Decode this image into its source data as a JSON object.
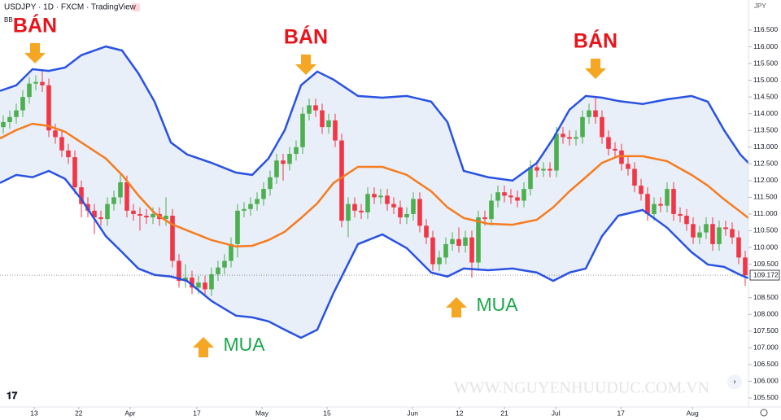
{
  "chart_data": {
    "type": "candlestick",
    "title": "USDJPY · 1D · FXCM · TradingView",
    "indicator": "BB",
    "y_unit": "JPY",
    "watermark": "WWW.NGUYENHUUDUC.COM.VN",
    "annotations": [
      "BÁN",
      "BÁN",
      "BÁN",
      "MUA",
      "MUA"
    ],
    "up_color": "#4caf50",
    "down_color": "#f23645",
    "xlim": [
      -0.5,
      114.5
    ],
    "ylim": [
      105.23,
      117.4
    ],
    "xticks": [
      {
        "value": 4.75,
        "label": "13"
      },
      {
        "value": 11.6,
        "label": "22"
      },
      {
        "value": 19.5,
        "label": "Apr"
      },
      {
        "value": 29.75,
        "label": "17"
      },
      {
        "value": 39.75,
        "label": "May"
      },
      {
        "value": 49.75,
        "label": "15"
      },
      {
        "value": 62.9,
        "label": "Jun"
      },
      {
        "value": 70.1,
        "label": "12"
      },
      {
        "value": 77,
        "label": "21"
      },
      {
        "value": 84.9,
        "label": "Jul"
      },
      {
        "value": 94.9,
        "label": "17"
      },
      {
        "value": 105.9,
        "label": "Aug"
      }
    ],
    "yticks": [
      {
        "value": 105.5,
        "label": "105.500"
      },
      {
        "value": 106,
        "label": "106.000"
      },
      {
        "value": 106.5,
        "label": "106.500"
      },
      {
        "value": 107,
        "label": "107.000"
      },
      {
        "value": 107.5,
        "label": "107.500"
      },
      {
        "value": 108,
        "label": "108.000"
      },
      {
        "value": 108.5,
        "label": "108.500"
      },
      {
        "value": 109.5,
        "label": "109.500"
      },
      {
        "value": 110,
        "label": "110.000"
      },
      {
        "value": 110.5,
        "label": "110.500"
      },
      {
        "value": 111,
        "label": "111.000"
      },
      {
        "value": 111.5,
        "label": "111.500"
      },
      {
        "value": 112,
        "label": "112.000"
      },
      {
        "value": 112.5,
        "label": "112.500"
      },
      {
        "value": 113,
        "label": "113.000"
      },
      {
        "value": 113.5,
        "label": "113.500"
      },
      {
        "value": 114,
        "label": "114.000"
      },
      {
        "value": 114.5,
        "label": "114.500"
      },
      {
        "value": 115,
        "label": "115.000"
      },
      {
        "value": 115.5,
        "label": "115.500"
      },
      {
        "value": 116,
        "label": "116.000"
      },
      {
        "value": 116.5,
        "label": "116.500"
      }
    ],
    "open": [
      113.6,
      113.75,
      113.9,
      114.1,
      114.5,
      114.9,
      114.95,
      114.85,
      113.5,
      113.3,
      112.9,
      112.7,
      111.8,
      111.3,
      111.1,
      110.9,
      110.85,
      111.3,
      111.5,
      111.95,
      111.1,
      111.0,
      110.95,
      110.9,
      111.0,
      110.85,
      110.95,
      109.6,
      109.0,
      109.1,
      108.8,
      108.95,
      108.75,
      109.2,
      109.4,
      109.6,
      110.1,
      111.1,
      111.15,
      111.3,
      111.45,
      111.75,
      112.1,
      112.6,
      112.5,
      112.8,
      113.0,
      114.0,
      114.25,
      114.1,
      113.6,
      113.8,
      113.2,
      110.8,
      111.3,
      111.1,
      111.05,
      111.6,
      111.5,
      111.55,
      111.3,
      111.2,
      110.9,
      111.0,
      111.45,
      110.65,
      110.3,
      109.5,
      109.7,
      110.1,
      110.25,
      110.05,
      110.3,
      109.55,
      110.9,
      110.85,
      111.4,
      111.65,
      111.55,
      111.5,
      111.4,
      111.75,
      112.4,
      112.3,
      112.35,
      112.3,
      113.4,
      113.3,
      113.25,
      113.3,
      113.9,
      114.1,
      113.9,
      113.3,
      112.95,
      112.9,
      112.5,
      112.35,
      111.85,
      111.6,
      111.0,
      111.3,
      111.25,
      111.75,
      111.0,
      110.95,
      110.7,
      110.3,
      110.45,
      110.7,
      110.1,
      110.6,
      110.55,
      110.3,
      109.7
    ],
    "high": [
      113.95,
      114.1,
      114.3,
      114.7,
      115.1,
      115.15,
      115.3,
      115.05,
      113.7,
      113.5,
      113.1,
      112.9,
      112.0,
      111.5,
      111.3,
      111.1,
      111.5,
      111.7,
      112.2,
      112.15,
      111.3,
      111.2,
      111.15,
      111.2,
      111.2,
      111.5,
      111.15,
      109.8,
      109.5,
      109.3,
      109.15,
      109.15,
      109.4,
      109.6,
      109.8,
      110.3,
      111.3,
      111.35,
      111.5,
      111.65,
      111.95,
      112.3,
      112.8,
      112.8,
      113.0,
      113.2,
      114.2,
      114.45,
      114.45,
      114.3,
      114.0,
      114.0,
      113.4,
      111.5,
      111.5,
      111.3,
      111.8,
      111.8,
      111.75,
      111.75,
      111.5,
      111.4,
      111.2,
      111.65,
      111.65,
      110.85,
      110.5,
      109.9,
      110.3,
      110.45,
      110.6,
      110.5,
      110.5,
      111.1,
      111.1,
      111.6,
      111.85,
      111.85,
      111.75,
      111.7,
      111.95,
      112.6,
      112.6,
      112.55,
      112.55,
      113.6,
      113.6,
      113.5,
      113.5,
      114.1,
      114.3,
      114.5,
      114.1,
      113.5,
      113.15,
      113.1,
      112.7,
      112.55,
      112.05,
      111.8,
      111.5,
      111.5,
      111.95,
      111.95,
      111.2,
      111.15,
      110.9,
      110.65,
      110.9,
      110.9,
      110.8,
      110.8,
      110.75,
      110.5,
      109.9
    ],
    "low": [
      113.4,
      113.55,
      113.7,
      113.9,
      114.3,
      114.7,
      114.65,
      113.3,
      113.1,
      112.7,
      112.5,
      111.6,
      110.9,
      110.9,
      110.4,
      110.65,
      110.65,
      111.1,
      111.3,
      110.9,
      110.8,
      110.5,
      110.7,
      110.7,
      110.65,
      110.65,
      109.4,
      108.8,
      108.8,
      108.6,
      108.6,
      108.55,
      108.55,
      109.0,
      109.2,
      109.4,
      109.7,
      110.9,
      110.95,
      111.1,
      111.25,
      111.55,
      111.9,
      112.0,
      112.3,
      112.6,
      112.8,
      113.8,
      113.9,
      113.4,
      113.4,
      113.0,
      110.6,
      110.3,
      110.9,
      110.85,
      110.85,
      111.3,
      111.3,
      111.1,
      111.0,
      110.7,
      110.7,
      110.8,
      110.45,
      110.1,
      109.3,
      109.3,
      109.5,
      109.9,
      109.85,
      109.85,
      109.1,
      109.35,
      110.65,
      110.65,
      111.2,
      111.35,
      111.3,
      111.2,
      111.2,
      111.55,
      112.1,
      112.1,
      112.1,
      112.1,
      113.1,
      113.05,
      113.05,
      113.1,
      113.7,
      113.7,
      113.1,
      112.75,
      112.7,
      112.3,
      112.15,
      111.65,
      111.4,
      110.8,
      110.8,
      111.05,
      111.05,
      110.8,
      110.75,
      110.5,
      110.1,
      110.1,
      110.25,
      109.9,
      109.9,
      110.35,
      110.1,
      109.5,
      108.85
    ],
    "close": [
      113.75,
      113.9,
      114.1,
      114.5,
      114.9,
      114.95,
      114.85,
      113.5,
      113.3,
      112.9,
      112.7,
      111.8,
      111.3,
      111.1,
      110.9,
      110.85,
      111.3,
      111.5,
      111.95,
      111.1,
      111.0,
      110.95,
      110.9,
      111.0,
      110.85,
      110.95,
      109.6,
      109.0,
      109.1,
      108.8,
      108.95,
      108.75,
      109.2,
      109.4,
      109.6,
      110.1,
      111.1,
      111.15,
      111.3,
      111.45,
      111.75,
      112.1,
      112.6,
      112.5,
      112.8,
      113.0,
      114.0,
      114.25,
      114.1,
      113.6,
      113.8,
      113.2,
      110.8,
      111.3,
      111.1,
      111.05,
      111.6,
      111.5,
      111.55,
      111.3,
      111.2,
      110.9,
      111.0,
      111.45,
      110.65,
      110.3,
      109.5,
      109.7,
      110.1,
      110.25,
      110.05,
      110.3,
      109.55,
      110.9,
      110.85,
      111.4,
      111.65,
      111.55,
      111.5,
      111.4,
      111.75,
      112.4,
      112.3,
      112.35,
      112.3,
      113.4,
      113.3,
      113.25,
      113.3,
      113.9,
      114.1,
      113.9,
      113.3,
      112.95,
      112.9,
      112.5,
      112.35,
      111.85,
      111.6,
      111.0,
      111.3,
      111.25,
      111.75,
      111.0,
      110.95,
      110.7,
      110.3,
      110.45,
      110.7,
      110.1,
      110.6,
      110.55,
      110.3,
      109.7,
      109.172
    ],
    "last_value_label": "109.172",
    "band_x": [
      -0.5,
      2,
      4.5,
      7,
      9.5,
      12,
      15.75,
      18.25,
      20.75,
      23.25,
      25.75,
      28.25,
      32,
      35.75,
      38.25,
      40.75,
      43.25,
      45.75,
      48.25,
      50.75,
      54.5,
      58.25,
      62,
      65.75,
      68.25,
      70.75,
      74.5,
      78.25,
      82,
      84.5,
      87,
      89.5,
      92,
      94.5,
      98.25,
      102,
      105.75,
      108.25,
      110.75,
      113.25,
      114.5
    ],
    "band_fill": "#e8eff9",
    "series": [
      {
        "color": "#2952e3",
        "values": [
          114.68,
          114.85,
          115.33,
          115.28,
          115.38,
          115.75,
          116.01,
          115.89,
          115.21,
          114.36,
          113.14,
          112.78,
          112.53,
          112.24,
          112.17,
          112.66,
          113.51,
          114.85,
          115.26,
          115.02,
          114.53,
          114.48,
          114.53,
          114.36,
          113.75,
          112.29,
          112.1,
          112.0,
          112.53,
          113.26,
          114.12,
          114.53,
          114.48,
          114.38,
          114.29,
          114.43,
          114.53,
          114.36,
          113.51,
          112.78,
          112.53
        ]
      },
      {
        "color": "#f57c1f",
        "values": [
          113.26,
          113.51,
          113.7,
          113.63,
          113.46,
          113.14,
          112.66,
          112.17,
          111.56,
          111.03,
          110.71,
          110.51,
          110.22,
          110.03,
          110.05,
          110.22,
          110.47,
          110.88,
          111.32,
          111.93,
          112.41,
          112.41,
          112.17,
          111.68,
          111.2,
          110.88,
          110.71,
          110.68,
          110.83,
          111.2,
          111.68,
          112.1,
          112.53,
          112.73,
          112.73,
          112.58,
          112.17,
          111.85,
          111.44,
          111.07,
          110.88
        ]
      },
      {
        "color": "#2952e3",
        "values": [
          111.93,
          112.17,
          112.1,
          112.29,
          112.05,
          111.44,
          110.34,
          109.86,
          109.37,
          109.18,
          109.13,
          109.0,
          108.4,
          107.96,
          107.91,
          107.79,
          107.54,
          107.3,
          107.54,
          108.64,
          110.1,
          110.39,
          109.98,
          109.25,
          109.13,
          109.37,
          109.32,
          109.37,
          109.25,
          109.0,
          109.25,
          109.37,
          110.34,
          110.95,
          111.12,
          110.59,
          109.86,
          109.49,
          109.42,
          109.18,
          109.08
        ]
      }
    ]
  }
}
